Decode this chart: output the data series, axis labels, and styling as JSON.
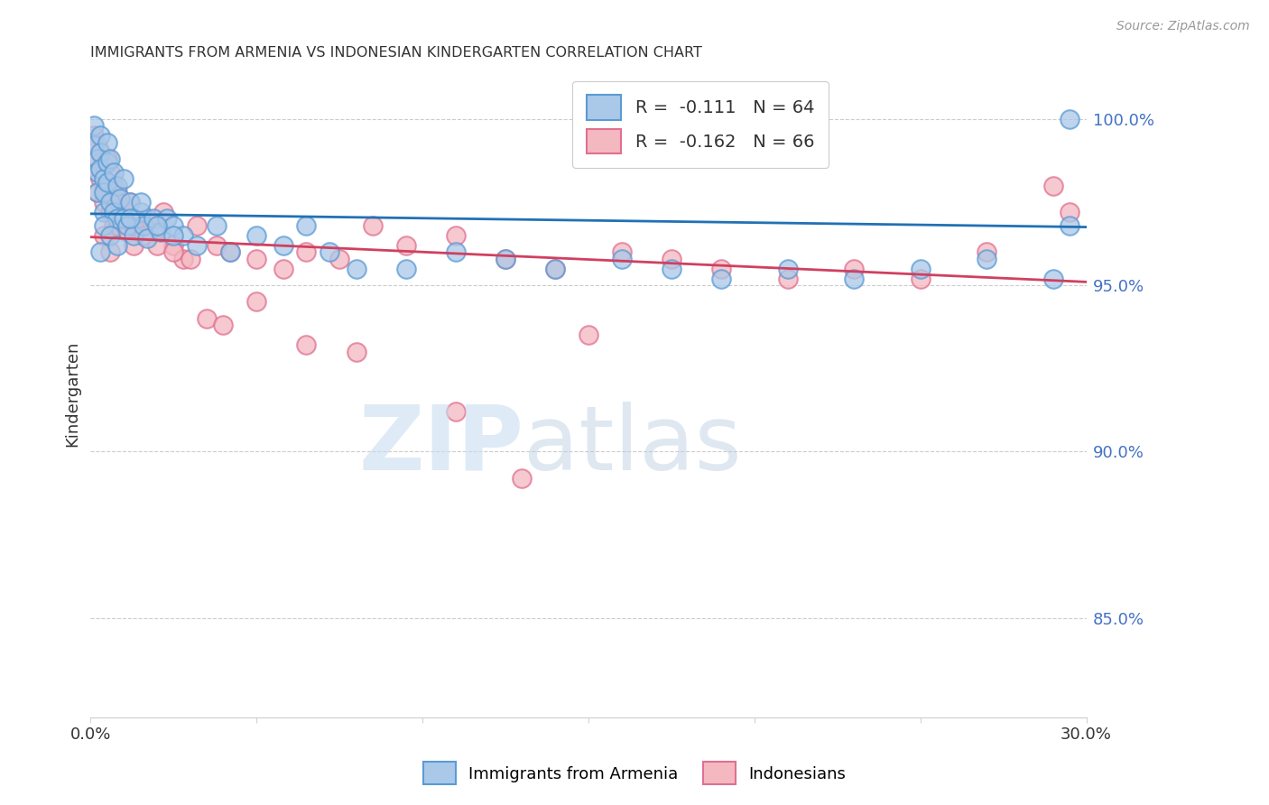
{
  "title": "IMMIGRANTS FROM ARMENIA VS INDONESIAN KINDERGARTEN CORRELATION CHART",
  "source": "Source: ZipAtlas.com",
  "ylabel": "Kindergarten",
  "blue_R": "-0.111",
  "blue_N": "64",
  "pink_R": "-0.162",
  "pink_N": "66",
  "blue_scatter_color_face": "#aac8e8",
  "blue_scatter_color_edge": "#5b9bd5",
  "pink_scatter_color_face": "#f4b8c1",
  "pink_scatter_color_edge": "#e07090",
  "blue_line_color": "#2171b5",
  "pink_line_color": "#d04060",
  "ytick_color": "#4472c4",
  "legend_label_blue": "Immigrants from Armenia",
  "legend_label_pink": "Indonesians",
  "xlim": [
    0.0,
    0.3
  ],
  "ylim": [
    0.82,
    1.015
  ],
  "yticks": [
    0.85,
    0.9,
    0.95,
    1.0
  ],
  "ytick_labels": [
    "85.0%",
    "90.0%",
    "95.0%",
    "100.0%"
  ],
  "blue_line_x": [
    0.0,
    0.3
  ],
  "blue_line_y": [
    0.9715,
    0.9675
  ],
  "pink_line_x": [
    0.0,
    0.3
  ],
  "pink_line_y": [
    0.9645,
    0.951
  ],
  "blue_x": [
    0.001,
    0.001,
    0.002,
    0.002,
    0.002,
    0.003,
    0.003,
    0.003,
    0.004,
    0.004,
    0.004,
    0.005,
    0.005,
    0.005,
    0.006,
    0.006,
    0.007,
    0.007,
    0.008,
    0.008,
    0.009,
    0.01,
    0.01,
    0.011,
    0.012,
    0.013,
    0.015,
    0.016,
    0.017,
    0.019,
    0.021,
    0.023,
    0.025,
    0.028,
    0.032,
    0.038,
    0.042,
    0.05,
    0.058,
    0.065,
    0.072,
    0.08,
    0.095,
    0.11,
    0.125,
    0.14,
    0.16,
    0.175,
    0.19,
    0.21,
    0.23,
    0.25,
    0.27,
    0.29,
    0.295,
    0.003,
    0.004,
    0.006,
    0.008,
    0.012,
    0.015,
    0.02,
    0.025,
    0.295
  ],
  "blue_y": [
    0.998,
    0.992,
    0.988,
    0.984,
    0.978,
    0.995,
    0.99,
    0.985,
    0.982,
    0.978,
    0.972,
    0.993,
    0.987,
    0.981,
    0.988,
    0.975,
    0.984,
    0.972,
    0.98,
    0.97,
    0.976,
    0.982,
    0.97,
    0.968,
    0.975,
    0.965,
    0.972,
    0.968,
    0.964,
    0.97,
    0.966,
    0.97,
    0.968,
    0.965,
    0.962,
    0.968,
    0.96,
    0.965,
    0.962,
    0.968,
    0.96,
    0.955,
    0.955,
    0.96,
    0.958,
    0.955,
    0.958,
    0.955,
    0.952,
    0.955,
    0.952,
    0.955,
    0.958,
    0.952,
    1.0,
    0.96,
    0.968,
    0.965,
    0.962,
    0.97,
    0.975,
    0.968,
    0.965,
    0.968
  ],
  "pink_x": [
    0.001,
    0.001,
    0.002,
    0.002,
    0.002,
    0.003,
    0.003,
    0.004,
    0.004,
    0.005,
    0.005,
    0.006,
    0.006,
    0.007,
    0.007,
    0.008,
    0.008,
    0.009,
    0.01,
    0.011,
    0.012,
    0.013,
    0.015,
    0.017,
    0.019,
    0.022,
    0.025,
    0.028,
    0.032,
    0.038,
    0.042,
    0.05,
    0.058,
    0.065,
    0.075,
    0.085,
    0.095,
    0.11,
    0.125,
    0.14,
    0.16,
    0.175,
    0.19,
    0.21,
    0.23,
    0.25,
    0.27,
    0.29,
    0.004,
    0.006,
    0.008,
    0.01,
    0.013,
    0.016,
    0.02,
    0.025,
    0.03,
    0.035,
    0.04,
    0.05,
    0.065,
    0.08,
    0.11,
    0.15,
    0.13,
    0.295
  ],
  "pink_y": [
    0.995,
    0.988,
    0.992,
    0.984,
    0.978,
    0.99,
    0.982,
    0.986,
    0.975,
    0.988,
    0.978,
    0.984,
    0.972,
    0.98,
    0.968,
    0.978,
    0.968,
    0.974,
    0.97,
    0.966,
    0.975,
    0.962,
    0.968,
    0.97,
    0.966,
    0.972,
    0.962,
    0.958,
    0.968,
    0.962,
    0.96,
    0.958,
    0.955,
    0.96,
    0.958,
    0.968,
    0.962,
    0.965,
    0.958,
    0.955,
    0.96,
    0.958,
    0.955,
    0.952,
    0.955,
    0.952,
    0.96,
    0.98,
    0.965,
    0.96,
    0.975,
    0.97,
    0.968,
    0.965,
    0.962,
    0.96,
    0.958,
    0.94,
    0.938,
    0.945,
    0.932,
    0.93,
    0.912,
    0.935,
    0.892,
    0.972
  ]
}
